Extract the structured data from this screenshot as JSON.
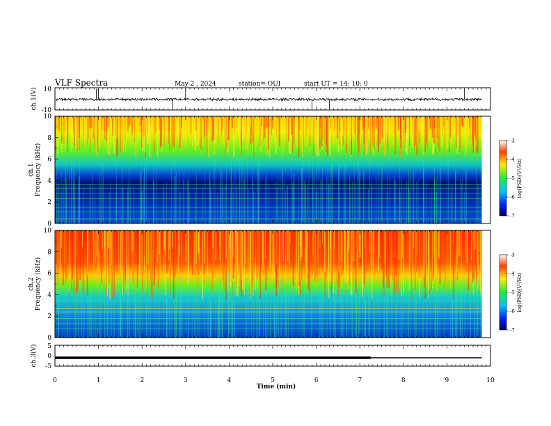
{
  "header": {
    "title": "VLF Spectra",
    "date": "May 2 , 2024",
    "station": "station= OUI",
    "start": "start  UT =   14: 10: 0"
  },
  "colors": {
    "hot": "#ff2a00",
    "warm": "#ffdd00",
    "mid": "#22ee44",
    "cool": "#00b4ff",
    "cold": "#0010a0"
  },
  "chart_data": [
    {
      "type": "line",
      "panel": "ch1_waveform",
      "ylabel": "ch.1(V)",
      "ylim": [
        -10,
        10
      ],
      "yticks": [
        "10",
        "-10"
      ],
      "xlim": [
        0,
        10
      ],
      "description_values": {
        "baseline": -0.5,
        "spike_times_min": [
          0.95,
          1.0,
          2.7,
          3.0,
          5.9,
          6.3,
          9.4
        ]
      }
    },
    {
      "type": "heatmap",
      "panel": "ch1_spectrogram",
      "ylabel": "ch.1\nFrequency (kHz)",
      "ylabel_lines": [
        "ch.1",
        "Frequency (kHz)"
      ],
      "ylim": [
        0,
        10
      ],
      "yticks": [
        "0",
        "2",
        "4",
        "6",
        "8",
        "10"
      ],
      "xlim": [
        0,
        10
      ],
      "data_end_min": 9.8,
      "colorbar": {
        "label": "log(PSD)(V²/Hz)",
        "range": [
          -7,
          -3
        ],
        "ticks": [
          "-3",
          "-4",
          "-5",
          "-6",
          "-7"
        ]
      },
      "bands_khz": [
        {
          "from": 0,
          "to": 4,
          "level": -6.5
        },
        {
          "from": 4,
          "to": 6,
          "level": -5.5
        },
        {
          "from": 6,
          "to": 8,
          "level": -4.5
        },
        {
          "from": 8,
          "to": 10,
          "level": -3.8
        }
      ],
      "lines_khz": [
        0.4,
        1.1,
        1.5,
        2.3,
        2.8,
        3.3,
        3.6
      ]
    },
    {
      "type": "heatmap",
      "panel": "ch2_spectrogram",
      "ylabel_lines": [
        "ch.2",
        "Frequency (kHz)"
      ],
      "ylim": [
        0,
        10
      ],
      "yticks": [
        "0",
        "2",
        "4",
        "6",
        "8",
        "10"
      ],
      "xlim": [
        0,
        10
      ],
      "data_end_min": 9.8,
      "colorbar": {
        "label": "log(PSD)(V²/Hz)",
        "range": [
          -7,
          -3
        ],
        "ticks": [
          "-3",
          "-4",
          "-5",
          "-6",
          "-7"
        ]
      },
      "bands_khz": [
        {
          "from": 0,
          "to": 3.5,
          "level": -6.0
        },
        {
          "from": 3.5,
          "to": 5,
          "level": -5.0
        },
        {
          "from": 5,
          "to": 6.5,
          "level": -4.2
        },
        {
          "from": 6.5,
          "to": 10,
          "level": -3.4
        }
      ],
      "lines_khz": [
        0.8,
        1.3,
        1.8,
        2.4,
        2.7,
        3.4
      ]
    },
    {
      "type": "line",
      "panel": "ch3_waveform",
      "ylabel": "ch.3(V)",
      "ylim": [
        -5,
        5
      ],
      "yticks": [
        "5",
        "0",
        "-5"
      ],
      "xlim": [
        0,
        10
      ],
      "xlabel": "Time (min)",
      "xticks": [
        "0",
        "1",
        "2",
        "3",
        "4",
        "5",
        "6",
        "7",
        "8",
        "9",
        "10"
      ],
      "segments": [
        {
          "x0": 0,
          "x1": 7.25,
          "y": -1.0,
          "weight": "thick"
        },
        {
          "x0": 7.25,
          "x1": 9.8,
          "y": -1.0,
          "weight": "thin"
        }
      ]
    }
  ]
}
